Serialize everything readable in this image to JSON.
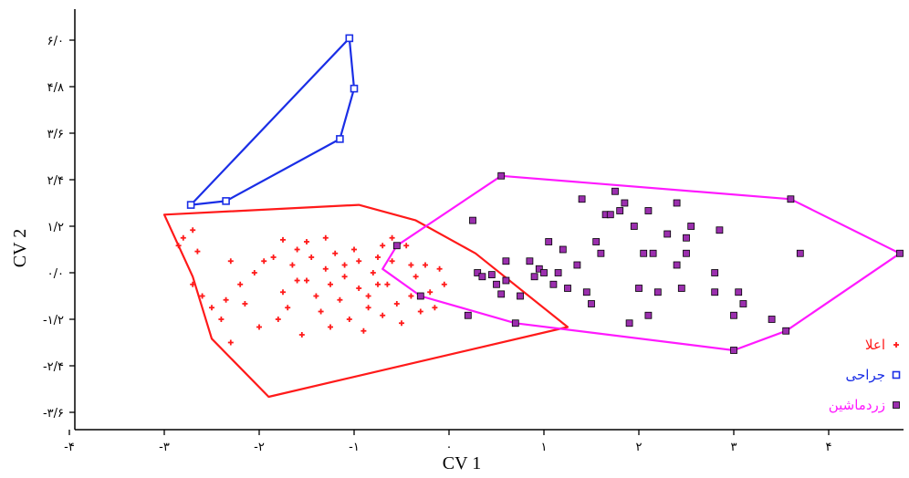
{
  "chart_data": {
    "type": "scatter",
    "title": "",
    "xlabel": "CV 1",
    "ylabel": "CV 2",
    "xlim": [
      -4.0,
      4.8
    ],
    "ylim": [
      -4.0,
      7.0
    ],
    "x_ticks": [
      -4,
      -3,
      -2,
      -1,
      0,
      1,
      2,
      3,
      4
    ],
    "x_tick_labels": [
      "-۴",
      "-۳",
      "-۲",
      "-۱",
      "۰",
      "۱",
      "۲",
      "۳",
      "۴"
    ],
    "y_ticks": [
      6.0,
      4.8,
      3.6,
      2.4,
      1.2,
      0.0,
      -1.2,
      -2.4,
      -3.6
    ],
    "y_tick_labels": [
      "۶/۰",
      "۴/۸",
      "۳/۶",
      "۲/۴",
      "۱/۲",
      "۰/۰",
      "-۱/۲",
      "-۲/۴",
      "-۳/۶"
    ],
    "grid": false,
    "legend_position": "bottom-right",
    "series": [
      {
        "name": "اعلا",
        "color": "#ff1a1a",
        "marker": "plus",
        "hull": [
          [
            -3.0,
            1.5
          ],
          [
            -2.7,
            -0.1
          ],
          [
            -2.5,
            -1.7
          ],
          [
            -1.9,
            -3.2
          ],
          [
            1.25,
            -1.4
          ],
          [
            0.28,
            0.5
          ],
          [
            -0.35,
            1.35
          ],
          [
            -0.95,
            1.75
          ]
        ],
        "points": [
          [
            -2.8,
            0.9
          ],
          [
            -2.85,
            0.7
          ],
          [
            -2.7,
            1.1
          ],
          [
            -2.65,
            0.55
          ],
          [
            -2.7,
            -0.3
          ],
          [
            -2.6,
            -0.6
          ],
          [
            -2.5,
            -0.9
          ],
          [
            -2.35,
            -0.7
          ],
          [
            -2.4,
            -1.2
          ],
          [
            -2.3,
            0.3
          ],
          [
            -2.3,
            -1.8
          ],
          [
            -2.2,
            -0.3
          ],
          [
            -2.15,
            -0.8
          ],
          [
            -2.05,
            0.0
          ],
          [
            -2.0,
            -1.4
          ],
          [
            -1.95,
            0.3
          ],
          [
            -1.8,
            -1.2
          ],
          [
            -1.85,
            0.4
          ],
          [
            -1.75,
            -0.5
          ],
          [
            -1.7,
            -0.9
          ],
          [
            -1.65,
            0.2
          ],
          [
            -1.6,
            -0.2
          ],
          [
            -1.55,
            -1.6
          ],
          [
            -1.5,
            0.8
          ],
          [
            -1.45,
            0.4
          ],
          [
            -1.4,
            -0.6
          ],
          [
            -1.35,
            -1.0
          ],
          [
            -1.3,
            0.1
          ],
          [
            -1.25,
            -1.4
          ],
          [
            -1.2,
            0.5
          ],
          [
            -1.15,
            -0.7
          ],
          [
            -1.1,
            0.2
          ],
          [
            -1.05,
            -1.2
          ],
          [
            -1.0,
            0.6
          ],
          [
            -0.95,
            -0.4
          ],
          [
            -0.9,
            -1.5
          ],
          [
            -0.85,
            -0.9
          ],
          [
            -0.8,
            0.0
          ],
          [
            -0.75,
            0.4
          ],
          [
            -0.7,
            -1.1
          ],
          [
            -0.65,
            -0.3
          ],
          [
            -0.6,
            0.3
          ],
          [
            -0.55,
            -0.8
          ],
          [
            -0.5,
            -1.3
          ],
          [
            -0.45,
            0.7
          ],
          [
            -0.4,
            -0.6
          ],
          [
            -0.35,
            -0.1
          ],
          [
            -0.3,
            -1.0
          ],
          [
            -0.25,
            0.2
          ],
          [
            -0.2,
            -0.5
          ],
          [
            -0.15,
            -0.9
          ],
          [
            -0.1,
            0.1
          ],
          [
            -0.05,
            -0.3
          ],
          [
            -1.5,
            -0.2
          ],
          [
            -1.3,
            0.9
          ],
          [
            -1.25,
            -0.3
          ],
          [
            -0.95,
            0.3
          ],
          [
            -0.85,
            -0.6
          ],
          [
            -0.7,
            0.7
          ],
          [
            -0.6,
            0.9
          ],
          [
            -1.75,
            0.85
          ],
          [
            -1.6,
            0.6
          ],
          [
            -1.1,
            -0.1
          ],
          [
            -0.75,
            -0.3
          ],
          [
            -0.4,
            0.2
          ]
        ]
      },
      {
        "name": "جراحی",
        "color": "#1a2ee6",
        "marker": "square-open",
        "hull": [
          [
            -2.72,
            1.75
          ],
          [
            -2.35,
            1.85
          ],
          [
            -1.15,
            3.45
          ],
          [
            -1.0,
            4.75
          ],
          [
            -1.05,
            6.05
          ]
        ],
        "points": [
          [
            -2.72,
            1.75
          ],
          [
            -2.35,
            1.85
          ],
          [
            -1.15,
            3.45
          ],
          [
            -1.0,
            4.75
          ],
          [
            -1.05,
            6.05
          ]
        ]
      },
      {
        "name": "زردماشین",
        "color": "#ff1aff",
        "marker": "square-filled",
        "fill": "#9b2fae",
        "hull": [
          [
            -0.7,
            0.1
          ],
          [
            -0.55,
            0.7
          ],
          [
            0.55,
            2.5
          ],
          [
            3.6,
            1.9
          ],
          [
            4.75,
            0.5
          ],
          [
            3.55,
            -1.5
          ],
          [
            3.0,
            -2.0
          ],
          [
            0.7,
            -1.3
          ],
          [
            -0.3,
            -0.6
          ]
        ],
        "points": [
          [
            -0.55,
            0.7
          ],
          [
            0.55,
            2.5
          ],
          [
            3.6,
            1.9
          ],
          [
            4.75,
            0.5
          ],
          [
            3.55,
            -1.5
          ],
          [
            3.0,
            -2.0
          ],
          [
            -0.3,
            -0.6
          ],
          [
            0.2,
            -1.1
          ],
          [
            0.7,
            -1.3
          ],
          [
            0.25,
            1.35
          ],
          [
            0.3,
            0.0
          ],
          [
            0.35,
            -0.1
          ],
          [
            0.45,
            -0.05
          ],
          [
            0.5,
            -0.3
          ],
          [
            0.55,
            -0.55
          ],
          [
            0.6,
            0.3
          ],
          [
            0.6,
            -0.2
          ],
          [
            0.75,
            -0.6
          ],
          [
            0.85,
            0.3
          ],
          [
            0.9,
            -0.1
          ],
          [
            0.95,
            0.1
          ],
          [
            1.0,
            0.0
          ],
          [
            1.05,
            0.8
          ],
          [
            1.1,
            -0.3
          ],
          [
            1.15,
            0.0
          ],
          [
            1.2,
            0.6
          ],
          [
            1.25,
            -0.4
          ],
          [
            1.35,
            0.2
          ],
          [
            1.4,
            1.9
          ],
          [
            1.45,
            -0.5
          ],
          [
            1.5,
            -0.8
          ],
          [
            1.55,
            0.8
          ],
          [
            1.6,
            0.5
          ],
          [
            1.65,
            1.5
          ],
          [
            1.7,
            1.5
          ],
          [
            1.75,
            2.1
          ],
          [
            1.8,
            1.6
          ],
          [
            1.85,
            1.8
          ],
          [
            1.9,
            -1.3
          ],
          [
            1.95,
            1.2
          ],
          [
            2.0,
            -0.4
          ],
          [
            2.05,
            0.5
          ],
          [
            2.1,
            1.6
          ],
          [
            2.1,
            -1.1
          ],
          [
            2.15,
            0.5
          ],
          [
            2.2,
            -0.5
          ],
          [
            2.3,
            1.0
          ],
          [
            2.4,
            0.2
          ],
          [
            2.4,
            1.8
          ],
          [
            2.45,
            -0.4
          ],
          [
            2.5,
            0.5
          ],
          [
            2.5,
            0.9
          ],
          [
            2.55,
            1.2
          ],
          [
            2.8,
            -0.5
          ],
          [
            2.8,
            0.0
          ],
          [
            2.85,
            1.1
          ],
          [
            3.0,
            -1.1
          ],
          [
            3.05,
            -0.5
          ],
          [
            3.1,
            -0.8
          ],
          [
            3.4,
            -1.2
          ],
          [
            3.7,
            0.5
          ]
        ]
      }
    ]
  }
}
